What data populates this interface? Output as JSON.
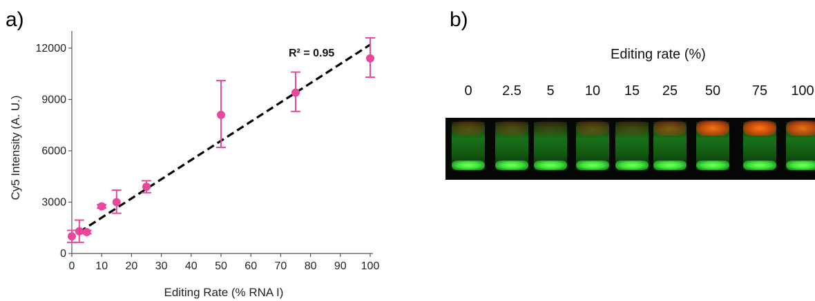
{
  "panel_a_label": "a)",
  "panel_b_label": "b)",
  "chart_data": {
    "type": "scatter",
    "xlabel": "Editing Rate (% RNA I)",
    "ylabel": "Cy5 Intensity (A. U.)",
    "xlim": [
      0,
      100
    ],
    "ylim": [
      0,
      13000
    ],
    "xticks": [
      0,
      10,
      20,
      30,
      40,
      50,
      60,
      70,
      80,
      90,
      100
    ],
    "yticks": [
      0,
      3000,
      6000,
      9000,
      12000
    ],
    "points": [
      {
        "x": 0,
        "y": 1000,
        "err_low": 650,
        "err_high": 1350
      },
      {
        "x": 2.5,
        "y": 1300,
        "err_low": 650,
        "err_high": 1950
      },
      {
        "x": 5,
        "y": 1250,
        "err_low": 1150,
        "err_high": 1350
      },
      {
        "x": 10,
        "y": 2750,
        "err_low": 2650,
        "err_high": 2850
      },
      {
        "x": 15,
        "y": 3000,
        "err_low": 2350,
        "err_high": 3700
      },
      {
        "x": 25,
        "y": 3900,
        "err_low": 3550,
        "err_high": 4250
      },
      {
        "x": 50,
        "y": 8100,
        "err_low": 6200,
        "err_high": 10100
      },
      {
        "x": 75,
        "y": 9400,
        "err_low": 8300,
        "err_high": 10600
      },
      {
        "x": 100,
        "y": 11400,
        "err_low": 10300,
        "err_high": 12600
      }
    ],
    "fit": {
      "x": [
        2.5,
        100
      ],
      "y": [
        1250,
        12200
      ]
    },
    "r2_label": "R² = 0.95",
    "marker_color": "#e8479b",
    "fit_color": "#000000",
    "grid": false
  },
  "gel": {
    "title": "Editing rate (%)",
    "lanes": [
      {
        "label": "0",
        "red_intensity": 0.28
      },
      {
        "label": "2.5",
        "red_intensity": 0.25
      },
      {
        "label": "5",
        "red_intensity": 0.15
      },
      {
        "label": "10",
        "red_intensity": 0.3
      },
      {
        "label": "15",
        "red_intensity": 0.2
      },
      {
        "label": "25",
        "red_intensity": 0.45
      },
      {
        "label": "50",
        "red_intensity": 0.95
      },
      {
        "label": "75",
        "red_intensity": 1.0
      },
      {
        "label": "100",
        "red_intensity": 0.9
      }
    ],
    "green_color": "#3de63a",
    "red_color": "#ff5a10"
  }
}
